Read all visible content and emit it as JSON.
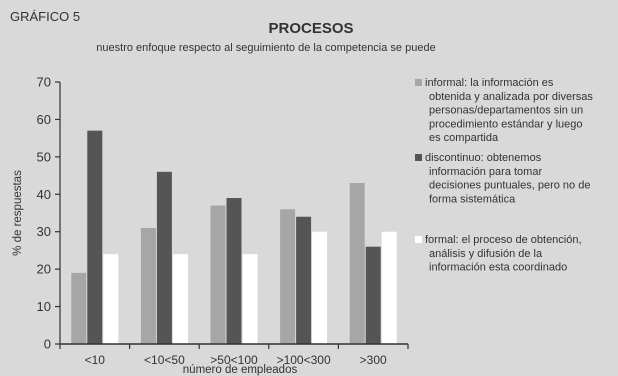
{
  "header": {
    "figure_label": "GRÁFICO 5",
    "title": "PROCESOS",
    "subtitle": "nuestro enfoque respecto al seguimiento de la competencia se puede"
  },
  "chart_data": {
    "type": "bar",
    "categories": [
      "<10",
      "<10<50",
      ">50<100",
      ">100<300",
      ">300"
    ],
    "series": [
      {
        "name": "informal: la información es obtenida y analizada por diversas personas/departamentos sin un procedimiento estándar y luego es compartida",
        "lines": [
          "informal: la información es",
          "obtenida y analizada por diversas",
          "personas/departamentos sin un",
          "procedimiento estándar y luego",
          "es compartida"
        ],
        "color": "#a6a6a6",
        "values": [
          19,
          31,
          37,
          36,
          43
        ]
      },
      {
        "name": "discontinuo: obtenemos información para tomar decisiones puntuales, pero no de forma sistemática",
        "lines": [
          "discontinuo: obtenemos",
          "información para tomar",
          "decisiones puntuales, pero no de",
          "forma sistemática"
        ],
        "color": "#555555",
        "values": [
          57,
          46,
          39,
          34,
          26
        ]
      },
      {
        "name": "formal: el proceso de obtención, análisis y difusión de la información esta coordinado",
        "lines": [
          "formal: el proceso de obtención,",
          "análisis y difusión de la",
          "información esta coordinado"
        ],
        "color": "#ffffff",
        "values": [
          24,
          24,
          24,
          30,
          30
        ]
      }
    ],
    "ylabel": "% de respuestas",
    "xlabel": "número de empleados",
    "ylim": [
      0,
      70
    ],
    "yticks": [
      0,
      10,
      20,
      30,
      40,
      50,
      60,
      70
    ],
    "grid": false,
    "legend_position": "right",
    "background_color": "#d9d9d9",
    "axis_color": "#333333"
  }
}
